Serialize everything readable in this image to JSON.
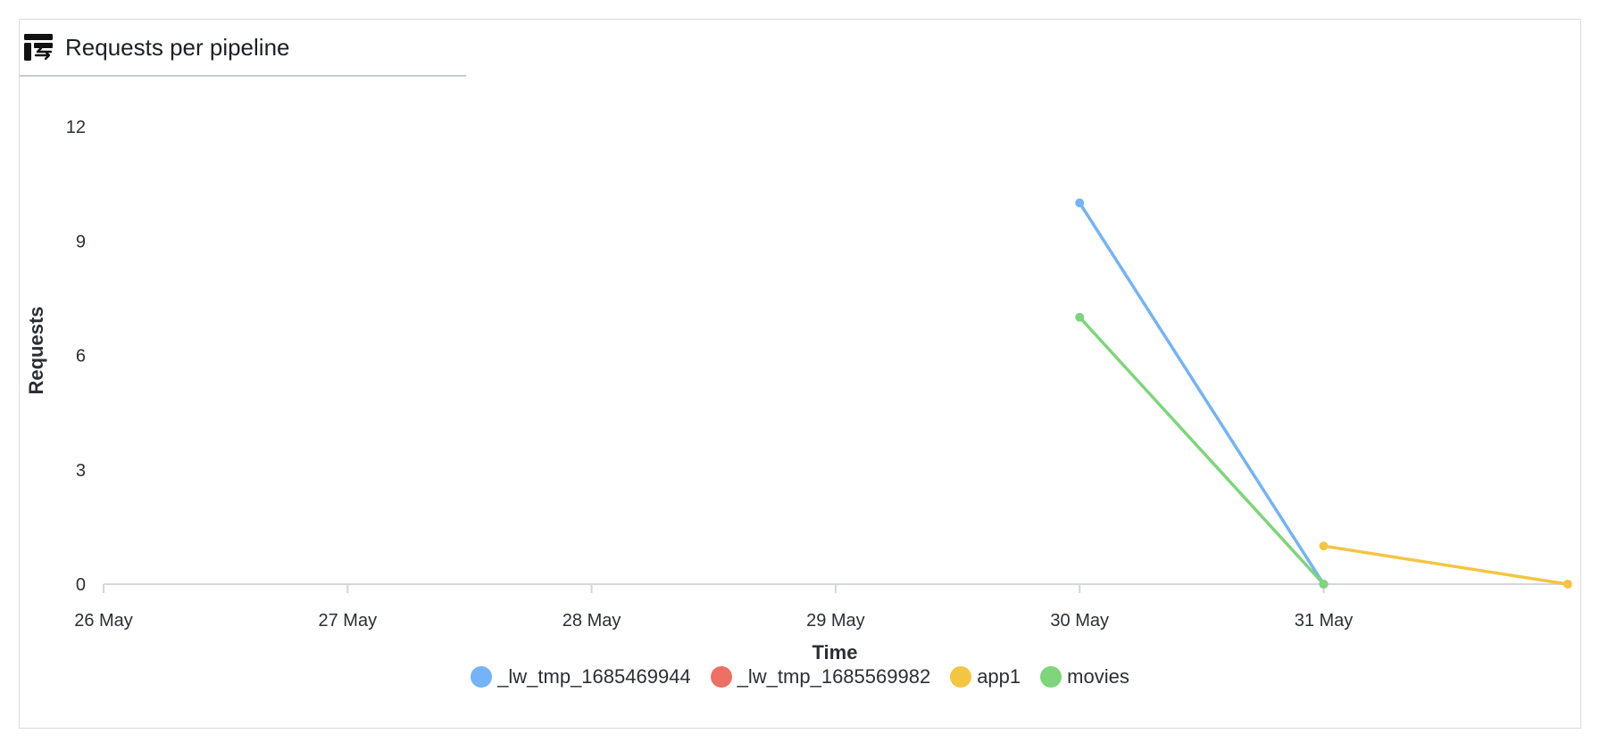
{
  "panel": {
    "title": "Requests per pipeline",
    "icon": "table-sync-icon"
  },
  "chart_data": {
    "type": "line",
    "title": "",
    "xlabel": "Time",
    "ylabel": "Requests",
    "x_ticks": [
      "26 May",
      "27 May",
      "28 May",
      "29 May",
      "30 May",
      "31 May"
    ],
    "xlim": [
      "26 May",
      "1 Jun"
    ],
    "y_ticks": [
      0,
      3,
      6,
      9,
      12
    ],
    "ylim": [
      0,
      12
    ],
    "grid": false,
    "legend_position": "bottom",
    "series": [
      {
        "name": "_lw_tmp_1685469944",
        "color": "#74b3f5",
        "points": [
          [
            "30 May",
            10
          ],
          [
            "31 May",
            0
          ]
        ]
      },
      {
        "name": "_lw_tmp_1685569982",
        "color": "#ec7063",
        "points": []
      },
      {
        "name": "app1",
        "color": "#f4c542",
        "points": [
          [
            "31 May",
            1
          ],
          [
            "1 Jun",
            0
          ]
        ]
      },
      {
        "name": "movies",
        "color": "#7dd67a",
        "points": [
          [
            "30 May",
            7
          ],
          [
            "31 May",
            0
          ]
        ]
      }
    ]
  }
}
